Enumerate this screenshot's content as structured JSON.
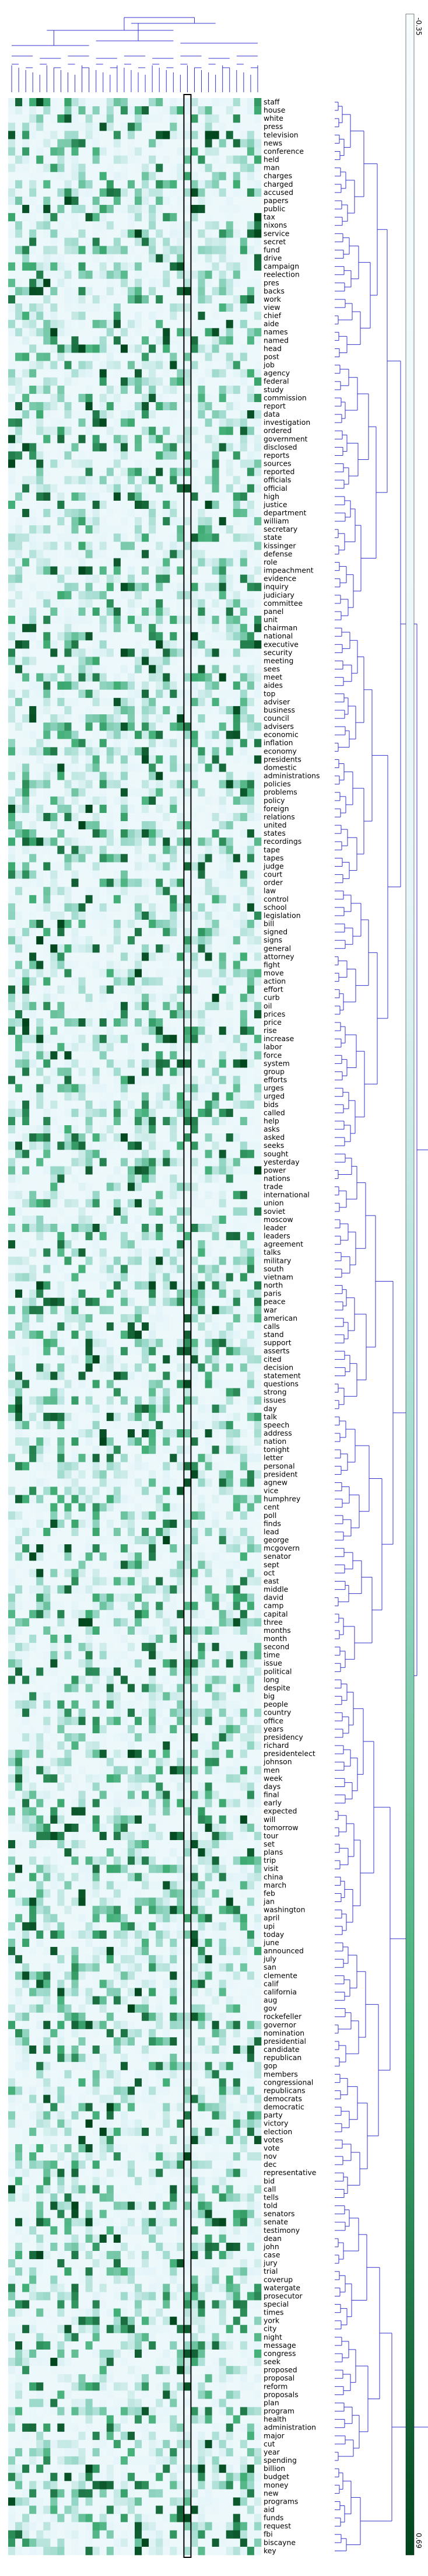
{
  "chart_data": {
    "type": "heatmap",
    "title": "",
    "xlabel": "",
    "ylabel": "",
    "n_columns": 36,
    "highlighted_column": 25,
    "rows": [
      "staff",
      "house",
      "white",
      "press",
      "television",
      "news",
      "conference",
      "held",
      "man",
      "charges",
      "charged",
      "accused",
      "papers",
      "public",
      "tax",
      "nixons",
      "service",
      "secret",
      "fund",
      "drive",
      "campaign",
      "reelection",
      "pres",
      "backs",
      "work",
      "view",
      "chief",
      "aide",
      "names",
      "named",
      "head",
      "post",
      "job",
      "agency",
      "federal",
      "study",
      "commission",
      "report",
      "data",
      "investigation",
      "ordered",
      "government",
      "disclosed",
      "reports",
      "sources",
      "reported",
      "officials",
      "official",
      "high",
      "justice",
      "department",
      "william",
      "secretary",
      "state",
      "kissinger",
      "defense",
      "role",
      "impeachment",
      "evidence",
      "inquiry",
      "judiciary",
      "committee",
      "panel",
      "unit",
      "chairman",
      "national",
      "executive",
      "security",
      "meeting",
      "sees",
      "meet",
      "aides",
      "top",
      "adviser",
      "business",
      "council",
      "advisers",
      "economic",
      "inflation",
      "economy",
      "presidents",
      "domestic",
      "administrations",
      "policies",
      "problems",
      "policy",
      "foreign",
      "relations",
      "united",
      "states",
      "recordings",
      "tape",
      "tapes",
      "judge",
      "court",
      "order",
      "law",
      "control",
      "school",
      "legislation",
      "bill",
      "signed",
      "signs",
      "general",
      "attorney",
      "fight",
      "move",
      "action",
      "effort",
      "curb",
      "oil",
      "prices",
      "price",
      "rise",
      "increase",
      "labor",
      "force",
      "system",
      "group",
      "efforts",
      "urges",
      "urged",
      "bids",
      "called",
      "help",
      "asks",
      "asked",
      "seeks",
      "sought",
      "yesterday",
      "power",
      "nations",
      "trade",
      "international",
      "union",
      "soviet",
      "moscow",
      "leader",
      "leaders",
      "agreement",
      "talks",
      "military",
      "south",
      "vietnam",
      "north",
      "paris",
      "peace",
      "war",
      "american",
      "calls",
      "stand",
      "support",
      "asserts",
      "cited",
      "decision",
      "statement",
      "questions",
      "strong",
      "issues",
      "day",
      "talk",
      "speech",
      "address",
      "nation",
      "tonight",
      "letter",
      "personal",
      "president",
      "agnew",
      "vice",
      "humphrey",
      "cent",
      "poll",
      "finds",
      "lead",
      "george",
      "mcgovern",
      "senator",
      "sept",
      "oct",
      "east",
      "middle",
      "david",
      "camp",
      "capital",
      "three",
      "months",
      "month",
      "second",
      "time",
      "issue",
      "political",
      "long",
      "despite",
      "big",
      "people",
      "country",
      "office",
      "years",
      "presidency",
      "richard",
      "presidentelect",
      "johnson",
      "men",
      "week",
      "days",
      "final",
      "early",
      "expected",
      "will",
      "tomorrow",
      "tour",
      "set",
      "plans",
      "trip",
      "visit",
      "china",
      "march",
      "feb",
      "jan",
      "washington",
      "april",
      "upi",
      "today",
      "june",
      "announced",
      "july",
      "san",
      "clemente",
      "calif",
      "california",
      "aug",
      "gov",
      "rockefeller",
      "governor",
      "nomination",
      "presidential",
      "candidate",
      "republican",
      "gop",
      "members",
      "congressional",
      "republicans",
      "democrats",
      "democratic",
      "party",
      "victory",
      "election",
      "votes",
      "vote",
      "nov",
      "dec",
      "representative",
      "bid",
      "call",
      "tells",
      "told",
      "senators",
      "senate",
      "testimony",
      "dean",
      "john",
      "case",
      "jury",
      "trial",
      "coverup",
      "watergate",
      "prosecutor",
      "special",
      "times",
      "york",
      "city",
      "night",
      "message",
      "congress",
      "seek",
      "proposed",
      "proposal",
      "reform",
      "proposals",
      "plan",
      "program",
      "health",
      "administration",
      "major",
      "cut",
      "year",
      "spending",
      "billion",
      "budget",
      "money",
      "new",
      "programs",
      "aid",
      "funds",
      "request",
      "fbi",
      "biscayne",
      "key"
    ],
    "colorbar": {
      "min": -0.35,
      "max": 0.69,
      "ticks": [
        "-0.35",
        "0.69"
      ],
      "colormap": "white-to-dark-green"
    },
    "dendrogram_top": true,
    "dendrogram_right": true,
    "grid": false
  }
}
